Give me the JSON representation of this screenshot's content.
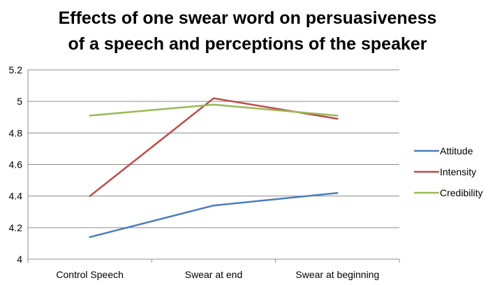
{
  "chart_data": {
    "type": "line",
    "title_lines": [
      "Effects of one swear word on persuasiveness",
      "of a speech and perceptions of the speaker"
    ],
    "categories": [
      "Control Speech",
      "Swear at end",
      "Swear at beginning"
    ],
    "series": [
      {
        "name": "Attitude",
        "color": "#4a7ebb",
        "values": [
          4.14,
          4.34,
          4.42
        ]
      },
      {
        "name": "Intensity",
        "color": "#be4b48",
        "values": [
          4.4,
          5.02,
          4.89
        ]
      },
      {
        "name": "Credibility",
        "color": "#98b954",
        "values": [
          4.91,
          4.98,
          4.91
        ]
      }
    ],
    "yticks": [
      "4",
      "4.2",
      "4.4",
      "4.6",
      "4.8",
      "5",
      "5.2"
    ],
    "ylim": [
      4,
      5.2
    ],
    "grid": true,
    "legend": "right"
  }
}
